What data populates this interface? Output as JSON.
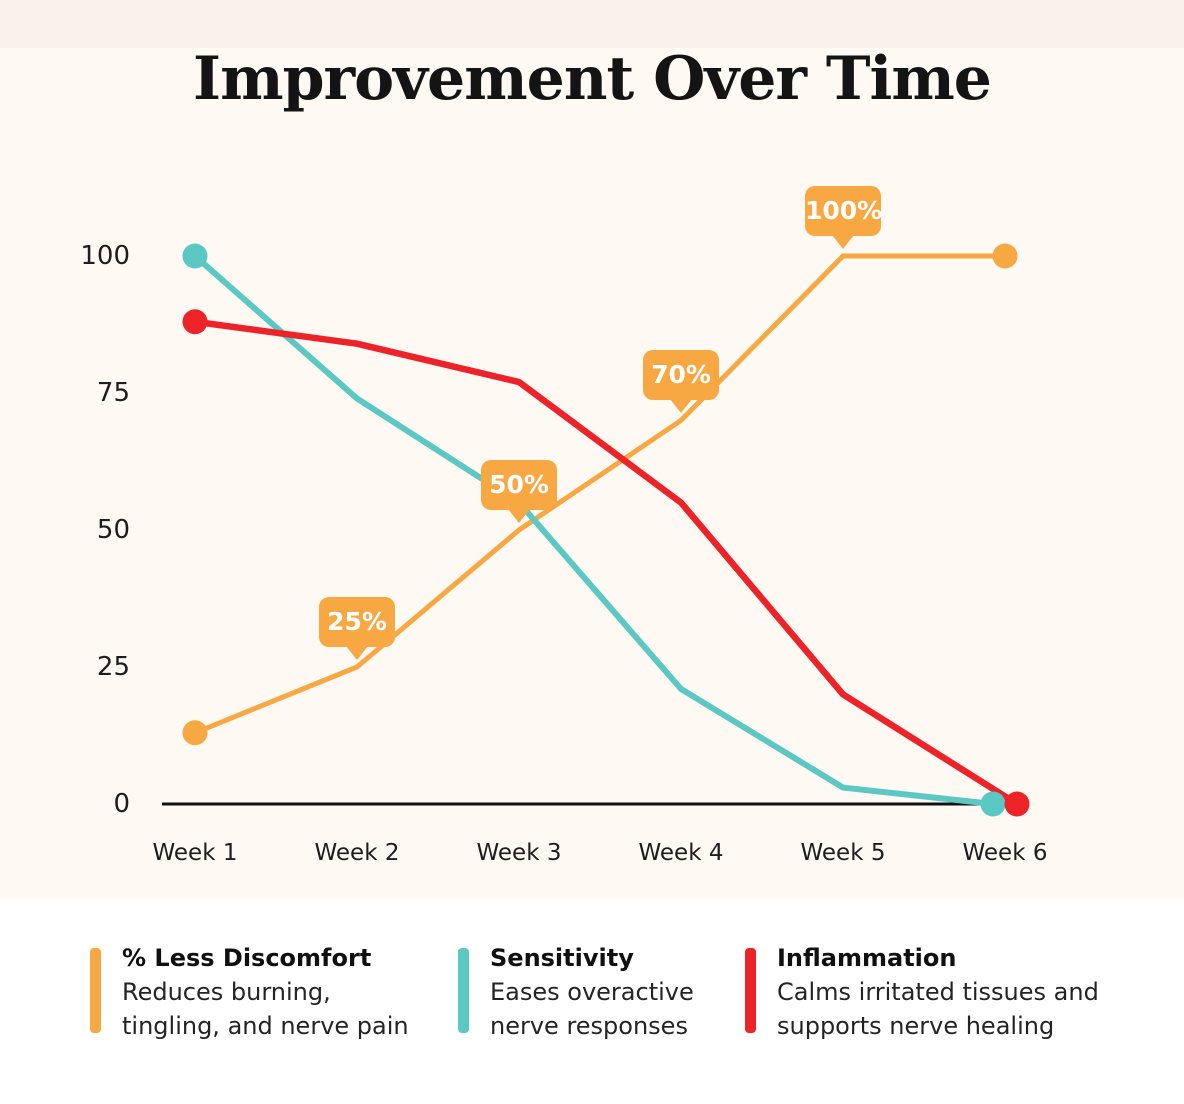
{
  "page": {
    "title": "Improvement Over Time"
  },
  "chart_data": {
    "type": "line",
    "title": "Improvement Over Time",
    "categories": [
      "Week 1",
      "Week 2",
      "Week 3",
      "Week 4",
      "Week 5",
      "Week 6"
    ],
    "y_ticks": [
      100,
      75,
      50,
      25,
      0
    ],
    "ylim": [
      0,
      105
    ],
    "grid": false,
    "axis_color": "#111111",
    "background_color": "#FEF9F3",
    "legend_position": "bottom",
    "series": [
      {
        "name": "% Less Discomfort",
        "description": "Reduces burning, tingling, and nerve pain",
        "color": "#F7A843",
        "values": [
          13,
          25,
          50,
          70,
          100,
          100
        ],
        "point_labels": [
          "",
          "25%",
          "50%",
          "70%",
          "100%",
          ""
        ],
        "markers": "first-and-last"
      },
      {
        "name": "Sensitivity",
        "description": "Eases overactive nerve responses",
        "color": "#5BC8C4",
        "values": [
          100,
          74,
          55,
          21,
          3,
          0
        ],
        "point_labels": [
          "",
          "",
          "",
          "",
          "",
          ""
        ],
        "markers": "first-and-last"
      },
      {
        "name": "Inflammation",
        "description": "Calms irritated tissues and supports nerve healing",
        "color": "#EC2429",
        "values": [
          88,
          84,
          77,
          55,
          20,
          0
        ],
        "point_labels": [
          "",
          "",
          "",
          "",
          "",
          ""
        ],
        "markers": "first-and-last"
      }
    ]
  },
  "legend": {
    "items": [
      {
        "title": "% Less Discomfort",
        "lines": [
          "Reduces burning,",
          "tingling, and nerve pain"
        ],
        "color": "#F7A843"
      },
      {
        "title": "Sensitivity",
        "lines": [
          "Eases overactive",
          "nerve responses"
        ],
        "color": "#5BC8C4"
      },
      {
        "title": "Inflammation",
        "lines": [
          "Calms irritated tissues and",
          "supports nerve healing"
        ],
        "color": "#EC2429"
      }
    ]
  }
}
